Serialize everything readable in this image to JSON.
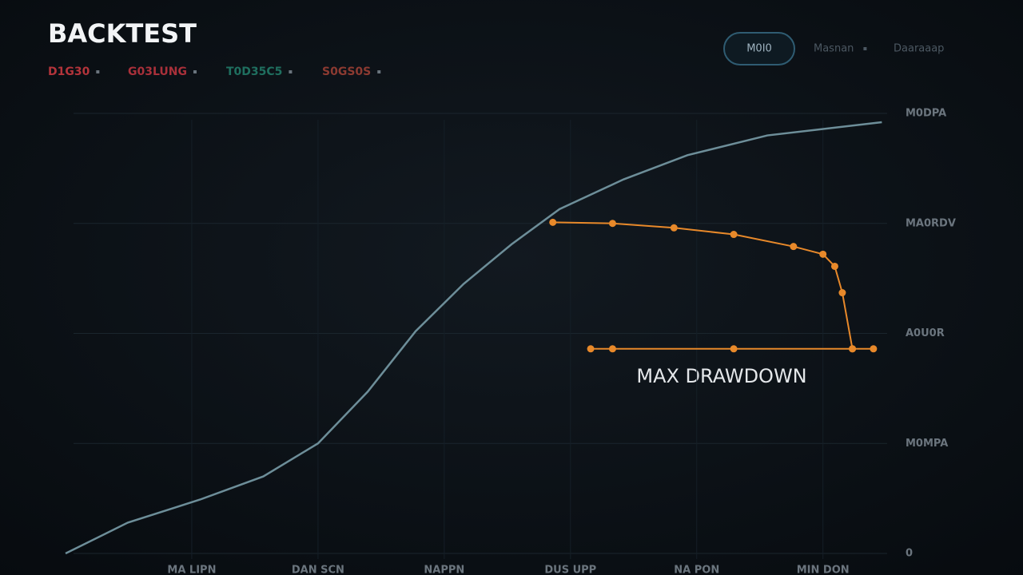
{
  "toolbar": {
    "title": "BACKTEST",
    "tags": [
      {
        "text": "D1G30",
        "color": "#b3343b"
      },
      {
        "text": "G03LUNG",
        "color": "#a9303a"
      },
      {
        "text": "T0D35C5",
        "color": "#1f6f5f"
      },
      {
        "text": "S0GS0S",
        "color": "#8c3a31"
      }
    ],
    "button": "M0I0",
    "menus": [
      "Masnan",
      "Daaraaap"
    ]
  },
  "chart_data": {
    "type": "line",
    "grid": true,
    "annotation": "MAX DRAWDOWN",
    "xlim": [
      0,
      10
    ],
    "xticks": [
      {
        "value": 1.5,
        "label": "MA LIPN"
      },
      {
        "value": 3,
        "label": "DAN SCN"
      },
      {
        "value": 4.5,
        "label": "NAPPN"
      },
      {
        "value": 6,
        "label": "DUS UPP"
      },
      {
        "value": 7.5,
        "label": "NA PON"
      },
      {
        "value": 9,
        "label": "MIN DON"
      }
    ],
    "ylim": [
      0,
      4
    ],
    "yticks": [
      0,
      {
        "value": 1,
        "label": "M0MPA"
      },
      {
        "value": 2,
        "label": "A0U0R"
      },
      {
        "value": 3,
        "label": "MA0RDV"
      },
      {
        "value": 4,
        "label": "M0DPA"
      }
    ],
    "series": [
      {
        "color": "#6d8e99",
        "markers": false,
        "x": [
          0,
          0.74,
          1.6,
          2.35,
          3.0,
          3.59,
          4.16,
          4.73,
          5.3,
          5.87,
          6.63,
          7.39,
          8.34,
          9.7
        ],
        "values": [
          0,
          0.28,
          0.49,
          0.7,
          1.0,
          1.47,
          2.02,
          2.45,
          2.81,
          3.13,
          3.4,
          3.62,
          3.8,
          3.92
        ]
      },
      {
        "color": "#e8892a",
        "markers": true,
        "x": [
          5.79,
          6.5,
          7.23,
          7.94,
          8.65,
          9.0,
          9.14,
          9.23,
          9.35
        ],
        "values": [
          3.01,
          3.0,
          2.96,
          2.9,
          2.79,
          2.72,
          2.61,
          2.37,
          1.86
        ]
      },
      {
        "color": "#e8892a",
        "markers": true,
        "x": [
          6.24,
          6.5,
          7.94,
          9.35,
          9.6
        ],
        "values": [
          1.86,
          1.86,
          1.86,
          1.86,
          1.86
        ]
      }
    ]
  }
}
